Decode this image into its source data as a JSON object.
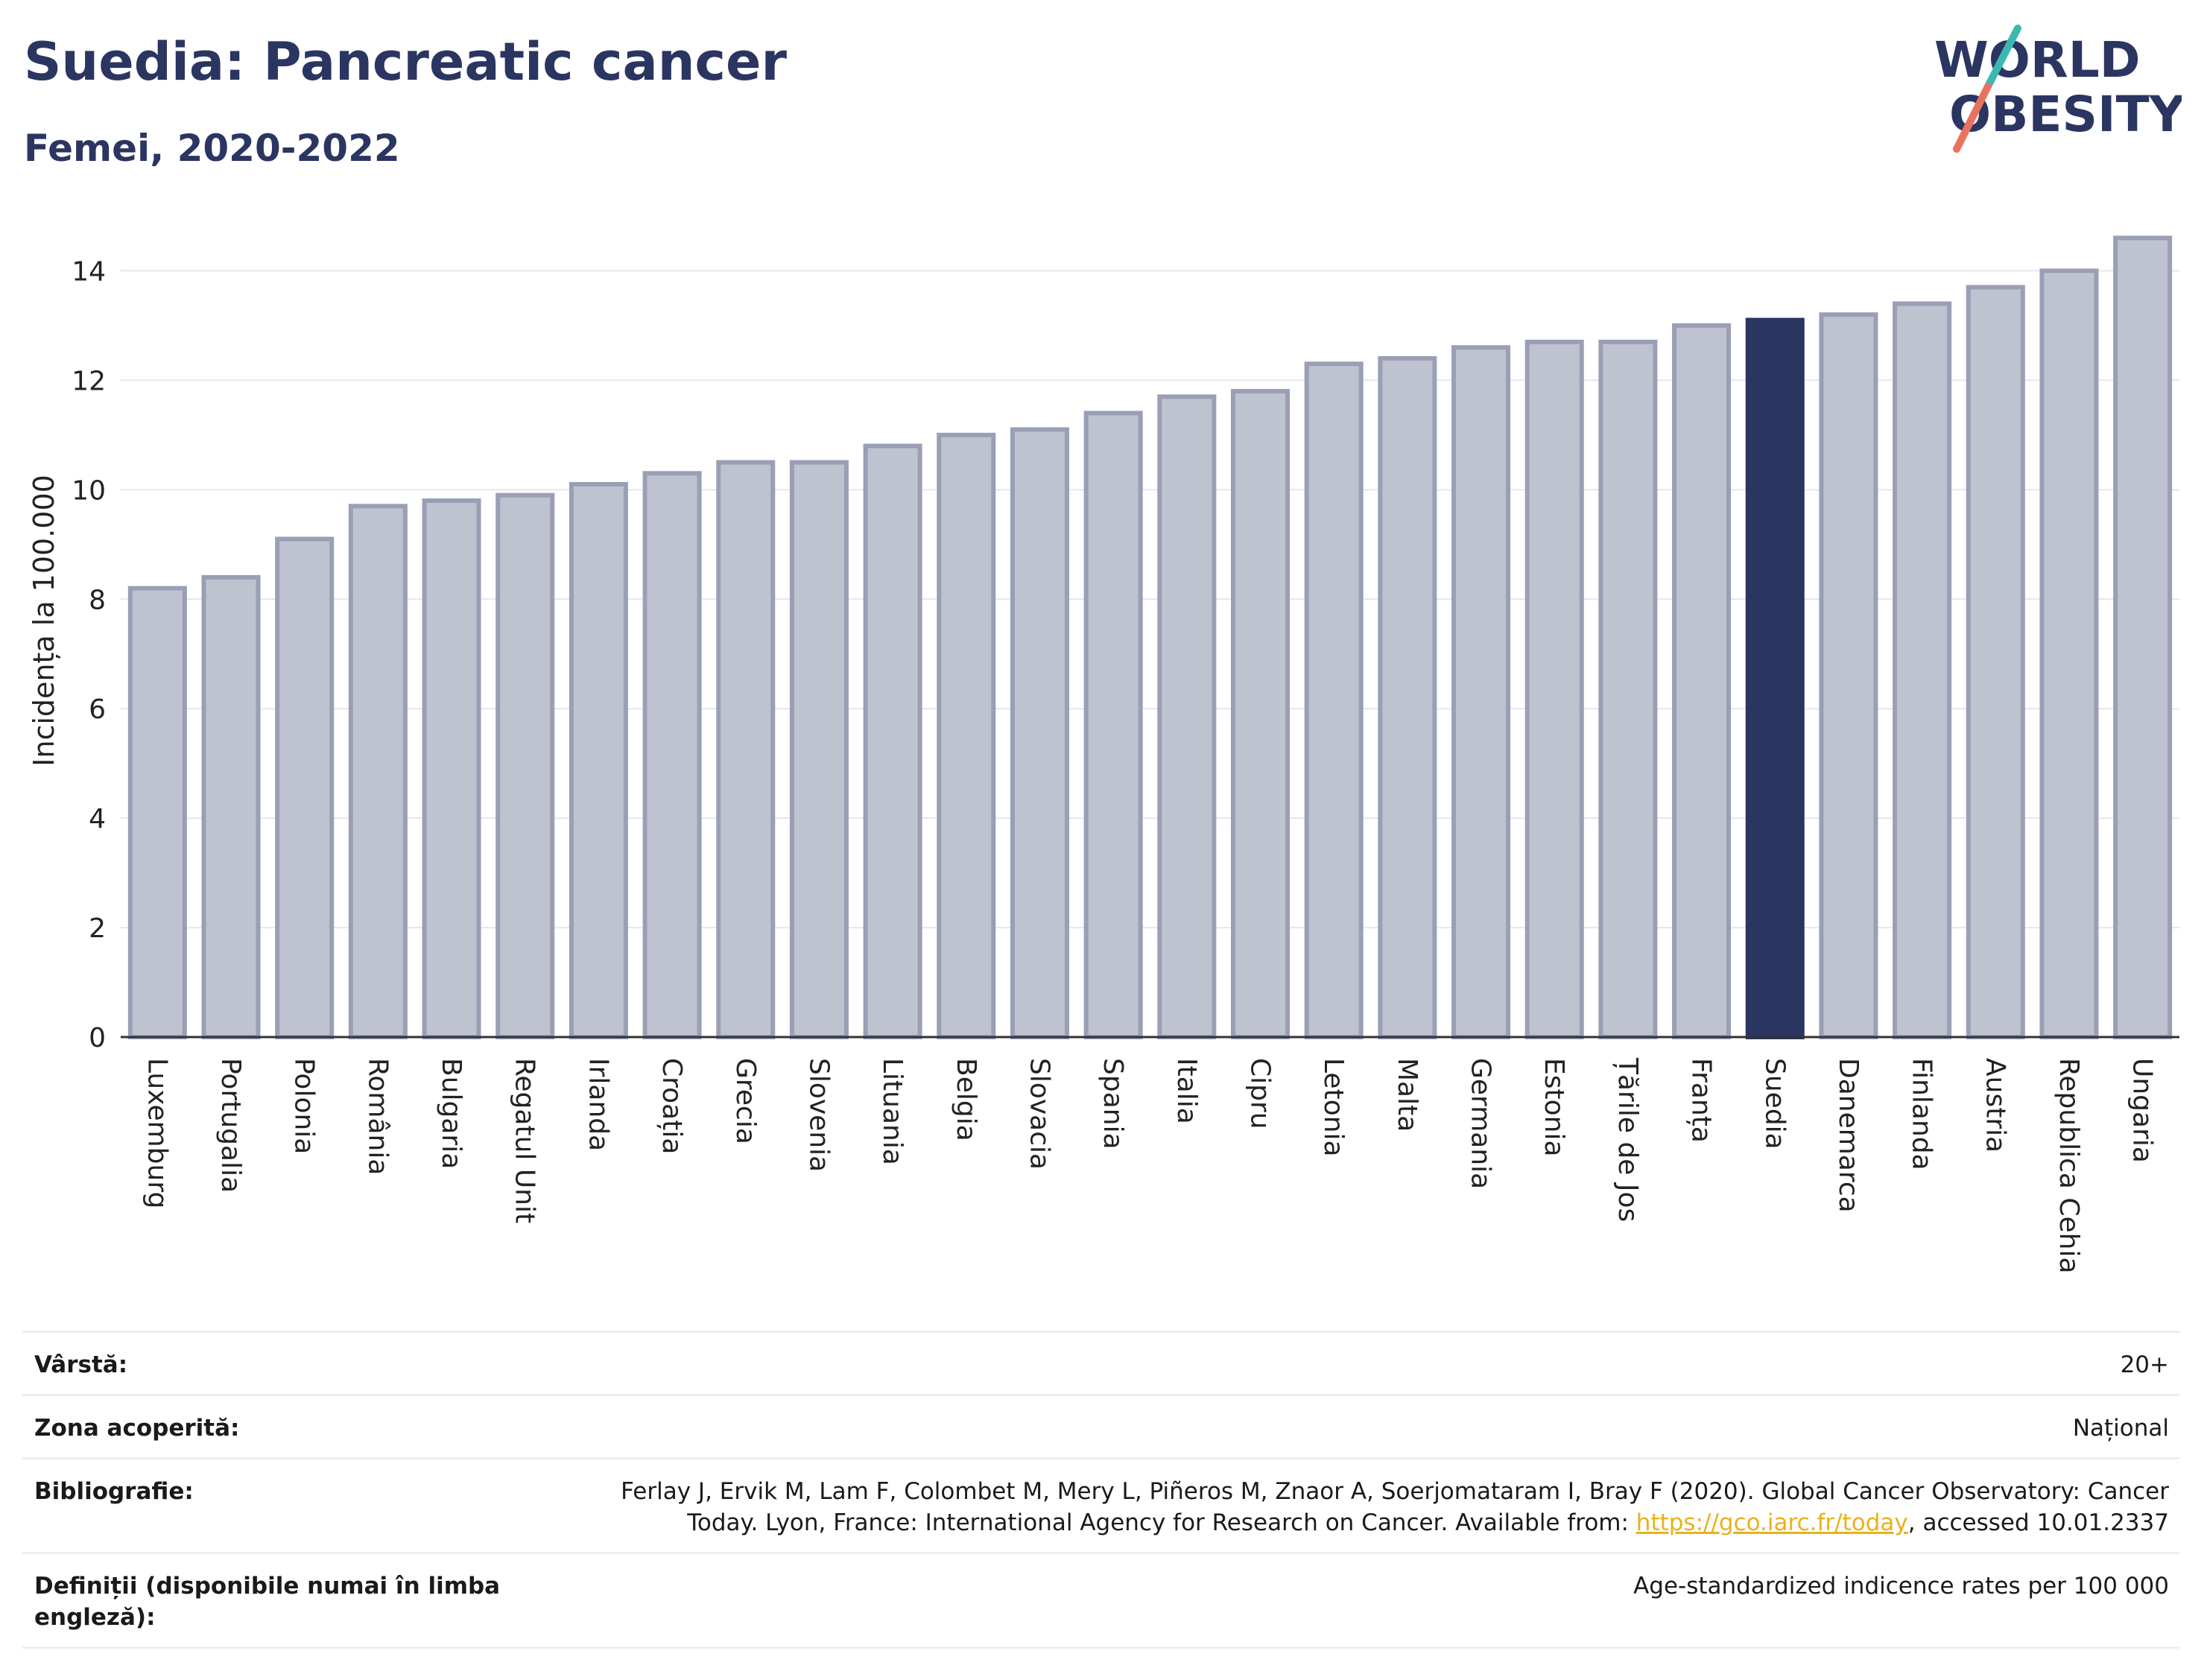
{
  "header": {
    "title": "Suedia: Pancreatic cancer",
    "subtitle": "Femei, 2020-2022"
  },
  "logo": {
    "line1": "WORLD",
    "line2": "OBESITY"
  },
  "colors": {
    "bar": "#bfc2cf",
    "bar_border": "#9a9fb6",
    "highlight": "#2b3561",
    "title": "#2b3561",
    "grid": "#e6e6ee",
    "link": "#e8b21a"
  },
  "chart_data": {
    "type": "bar",
    "ylabel": "Incidența la 100.000",
    "ylim": [
      0,
      15
    ],
    "yticks": [
      0,
      2,
      4,
      6,
      8,
      10,
      12,
      14
    ],
    "grid": true,
    "highlight": "Suedia",
    "categories": [
      "Luxemburg",
      "Portugalia",
      "Polonia",
      "România",
      "Bulgaria",
      "Regatul Unit",
      "Irlanda",
      "Croația",
      "Grecia",
      "Slovenia",
      "Lituania",
      "Belgia",
      "Slovacia",
      "Spania",
      "Italia",
      "Cipru",
      "Letonia",
      "Malta",
      "Germania",
      "Estonia",
      "Țările de Jos",
      "Franța",
      "Suedia",
      "Danemarca",
      "Finlanda",
      "Austria",
      "Republica Cehia",
      "Ungaria"
    ],
    "values": [
      8.2,
      8.4,
      9.1,
      9.7,
      9.8,
      9.9,
      10.1,
      10.3,
      10.5,
      10.5,
      10.8,
      11.0,
      11.1,
      11.4,
      11.7,
      11.8,
      12.3,
      12.4,
      12.6,
      12.7,
      12.7,
      13.0,
      13.1,
      13.2,
      13.4,
      13.7,
      14.0,
      14.6
    ]
  },
  "meta": {
    "age_label": "Vârstă:",
    "age_value": "20+",
    "area_label": "Zona acoperită:",
    "area_value": "Național",
    "bib_label": "Bibliografie:",
    "bib_text": "Ferlay J, Ervik M, Lam F, Colombet M, Mery L, Piñeros M, Znaor A, Soerjomataram I, Bray F (2020). Global Cancer Observatory: Cancer Today. Lyon, France: International Agency for Research on Cancer. Available from:",
    "bib_link": "https://gco.iarc.fr/today",
    "bib_accessed": ", accessed 10.01.2337",
    "def_label": "Definiții (disponibile numai în limba engleză):",
    "def_value": "Age-standardized indicence rates per 100 000"
  }
}
